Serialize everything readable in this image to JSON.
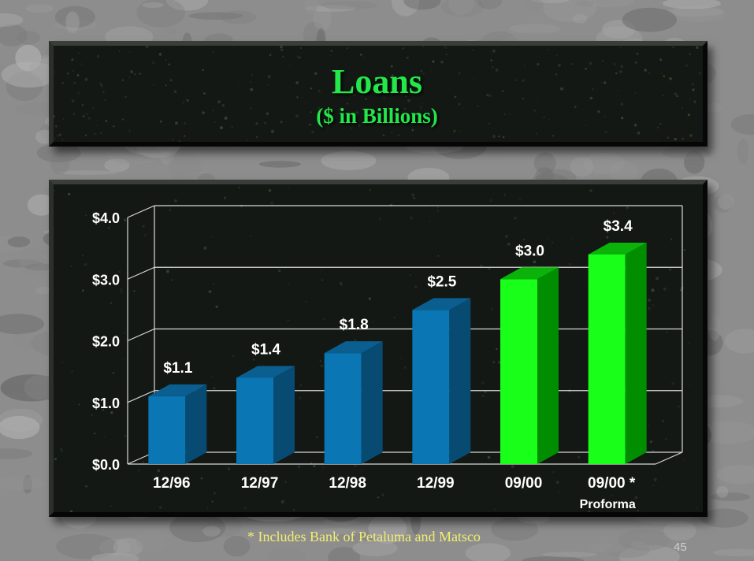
{
  "slide": {
    "title": "Loans",
    "subtitle": "($ in Billions)",
    "footnote": "* Includes Bank of Petaluma and Matsco",
    "page_number": "45"
  },
  "colors": {
    "blue_front": "#0a76b4",
    "blue_side": "#074a72",
    "blue_top": "#0b5e90",
    "green_front": "#19ff19",
    "green_side": "#008e00",
    "green_top": "#0ab20a",
    "title": "#22e84a",
    "labels": "#ffffff",
    "footnote": "#f2ee70"
  },
  "chart_data": {
    "type": "bar",
    "three_d": true,
    "categories": [
      "12/96",
      "12/97",
      "12/98",
      "12/99",
      "09/00",
      "09/00 *"
    ],
    "category_sublabels": [
      "",
      "",
      "",
      "",
      "",
      "Proforma"
    ],
    "values": [
      1.1,
      1.4,
      1.8,
      2.5,
      3.0,
      3.4
    ],
    "data_labels": [
      "$1.1",
      "$1.4",
      "$1.8",
      "$2.5",
      "$3.0",
      "$3.4"
    ],
    "bar_colors": [
      "blue",
      "blue",
      "blue",
      "blue",
      "green",
      "green"
    ],
    "y_ticks": [
      "$0.0",
      "$1.0",
      "$2.0",
      "$3.0",
      "$4.0"
    ],
    "y_tick_values": [
      0,
      1,
      2,
      3,
      4
    ],
    "ylim": [
      0,
      4
    ],
    "grid": true,
    "legend": false
  }
}
